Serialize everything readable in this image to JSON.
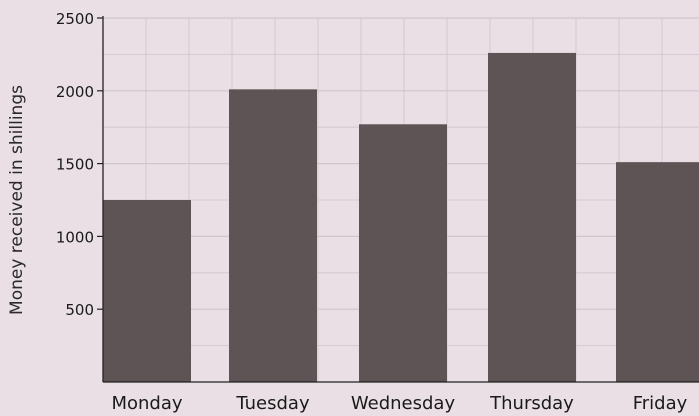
{
  "chart_data": {
    "type": "bar",
    "title": "",
    "xlabel": "",
    "ylabel": "Money received in shillings",
    "categories": [
      "Monday",
      "Tuesday",
      "Wednesday",
      "Thursday",
      "Friday"
    ],
    "values": [
      1250,
      2010,
      1770,
      2260,
      1510
    ],
    "ylim": [
      0,
      2500
    ],
    "yticks": [
      500,
      1000,
      1500,
      2000,
      2500
    ],
    "grid": true,
    "colors": {
      "bar": "#5e5456",
      "grid": "#d3c3cb",
      "axis": "#222222",
      "background": "#e9dfe4"
    }
  }
}
